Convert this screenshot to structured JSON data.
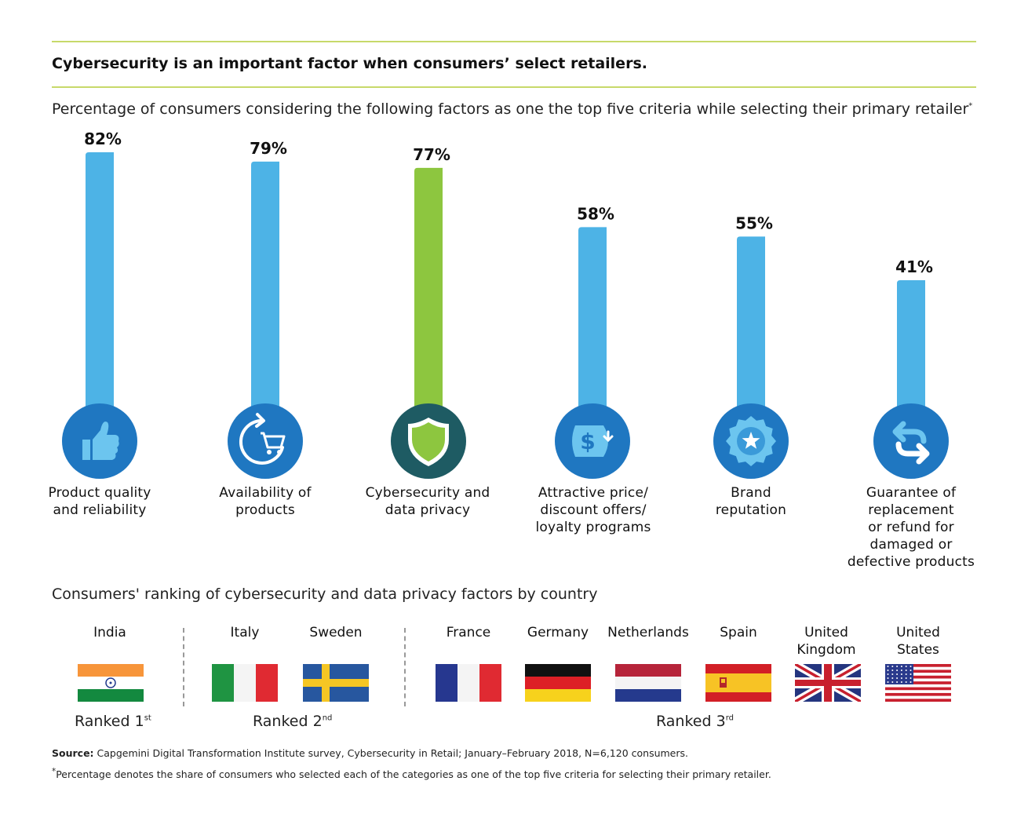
{
  "header": {
    "title": "Cybersecurity is an important factor when consumers’ select retailers.",
    "subtitle": "Percentage of consumers considering the following factors as one the top five criteria while selecting their primary retailer",
    "subtitle_mark": "*"
  },
  "chart_data": {
    "type": "bar",
    "categories": [
      "Product quality\nand reliability",
      "Availability of\nproducts",
      "Cybersecurity and\ndata privacy",
      "Attractive price/\ndiscount offers/\nloyalty programs",
      "Brand\nreputation",
      "Guarantee of\nreplacement\nor refund for\ndamaged or\ndefective products"
    ],
    "values": [
      82,
      79,
      77,
      58,
      55,
      41
    ],
    "value_labels": [
      "82%",
      "79%",
      "77%",
      "58%",
      "55%",
      "41%"
    ],
    "highlight_index": 2,
    "icons": [
      "thumbs-up-icon",
      "cart-refresh-icon",
      "shield-icon",
      "price-tag-icon",
      "star-badge-icon",
      "return-arrows-icon"
    ],
    "ylim": [
      0,
      100
    ],
    "colors": {
      "bar": "#4db3e6",
      "highlight": "#8dc63f",
      "icon_circle": "#1f77c1",
      "icon_circle_highlight": "#1e5b63",
      "icon_fill": "#6cc5ef"
    }
  },
  "ranking": {
    "title": "Consumers' ranking of cybersecurity and data privacy factors by country",
    "groups": [
      {
        "rank": "Ranked 1",
        "suffix": "st",
        "countries": [
          "India"
        ]
      },
      {
        "rank": "Ranked 2",
        "suffix": "nd",
        "countries": [
          "Italy",
          "Sweden"
        ]
      },
      {
        "rank": "Ranked 3",
        "suffix": "rd",
        "countries": [
          "France",
          "Germany",
          "Netherlands",
          "Spain",
          "United\nKingdom",
          "United\nStates"
        ]
      }
    ]
  },
  "footer": {
    "source_label": "Source:",
    "source_text": " Capgemini Digital Transformation Institute survey, Cybersecurity in Retail; January–February 2018, N=6,120 consumers.",
    "note_mark": "*",
    "note": "Percentage denotes the share of consumers who selected each of the categories as one of the top five criteria for selecting their primary retailer."
  }
}
